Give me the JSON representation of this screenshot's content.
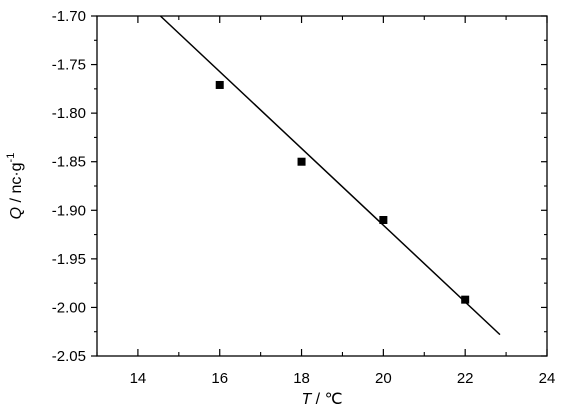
{
  "chart_data": {
    "type": "scatter",
    "xlabel": "T / ℃",
    "ylabel": "Q / nc·g-1",
    "xlim": [
      13,
      24
    ],
    "ylim": [
      -2.05,
      -1.7
    ],
    "xticks": [
      14,
      16,
      18,
      20,
      22,
      24
    ],
    "yticks": [
      -1.7,
      -1.75,
      -1.8,
      -1.85,
      -1.9,
      -1.95,
      -2.0,
      -2.05
    ],
    "xtick_labels": [
      "14",
      "16",
      "18",
      "20",
      "22",
      "24"
    ],
    "ytick_labels": [
      "-1.70",
      "-1.75",
      "-1.80",
      "-1.85",
      "-1.90",
      "-1.95",
      "-2.00",
      "-2.05"
    ],
    "points": [
      {
        "x": 16,
        "y": -1.771
      },
      {
        "x": 18,
        "y": -1.85
      },
      {
        "x": 20,
        "y": -1.91
      },
      {
        "x": 22,
        "y": -1.992
      }
    ],
    "fit_line": {
      "x": [
        14.55,
        22.85
      ],
      "y": [
        -1.7,
        -2.028
      ]
    },
    "grid": false
  },
  "axis_text": {
    "x_var": "T",
    "x_unit": " / ℃",
    "y_var": "Q",
    "y_unit": " / nc·g",
    "y_exp": "-1"
  }
}
